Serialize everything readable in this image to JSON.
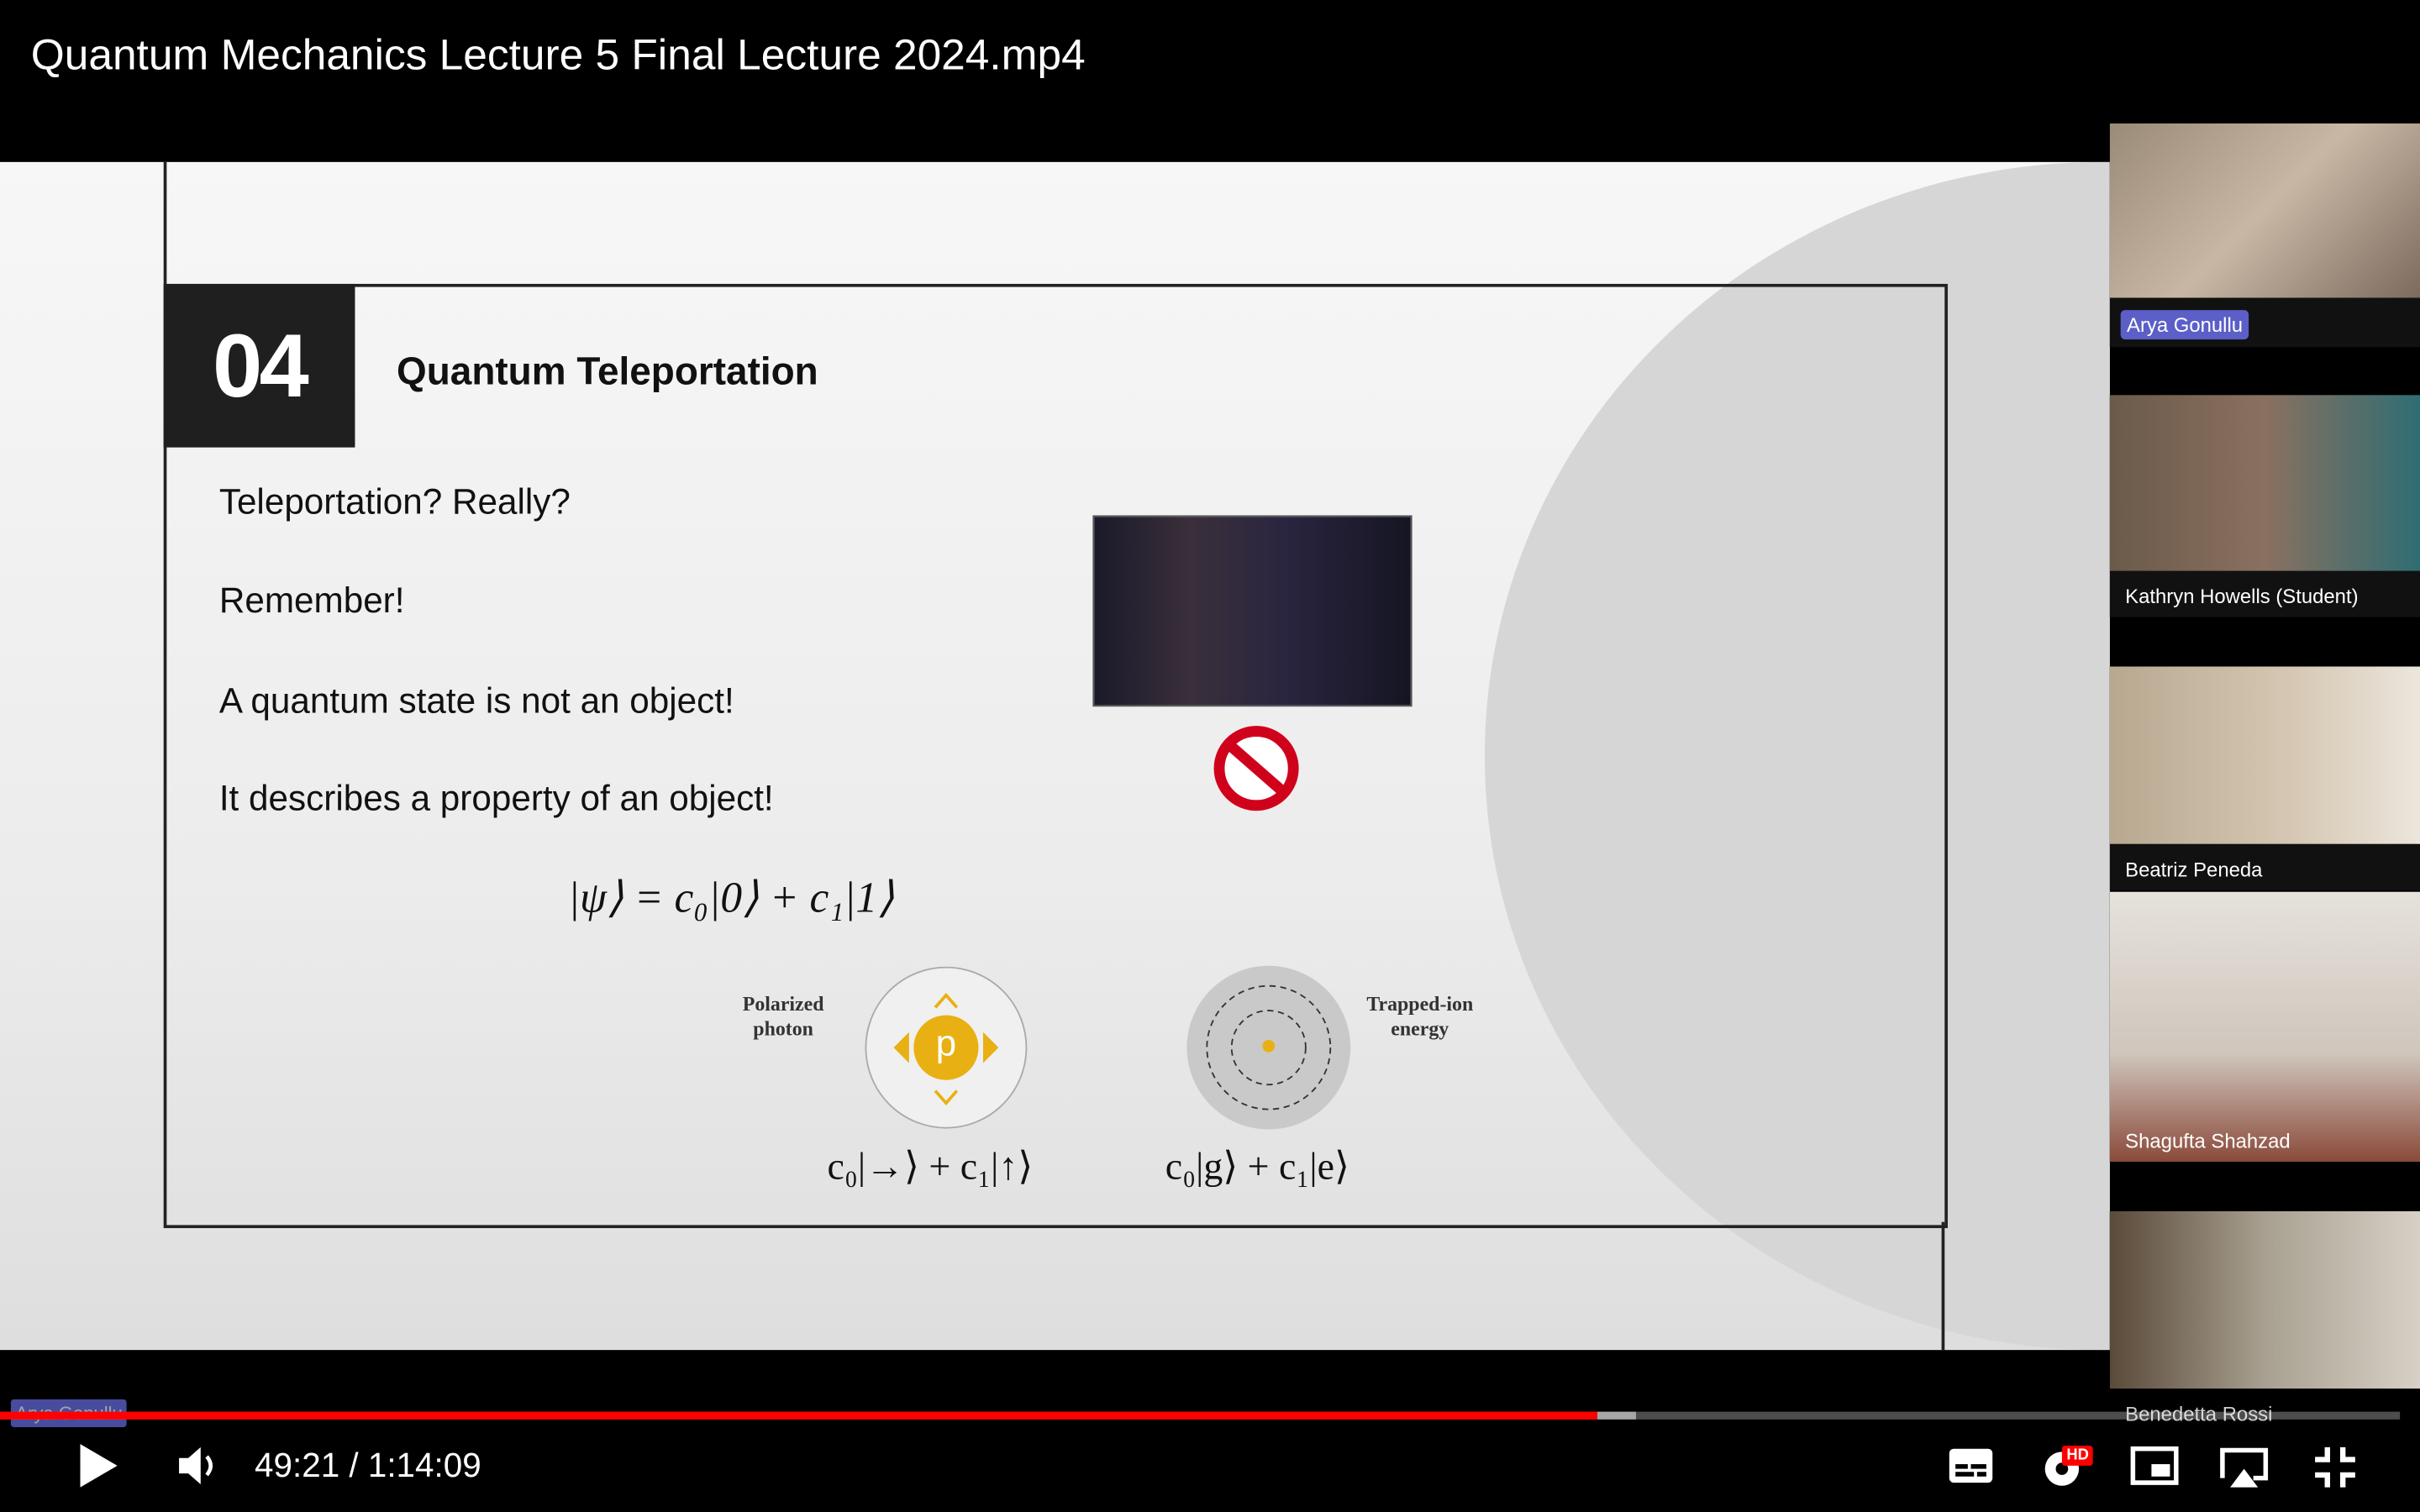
{
  "header": {
    "title": "Quantum Mechanics Lecture 5 Final Lecture 2024.mp4"
  },
  "slide": {
    "number": "04",
    "title": "Quantum Teleportation",
    "lines": [
      "Teleportation? Really?",
      "Remember!",
      "A quantum state is not an object!",
      "It describes a property of an object!"
    ],
    "equation": "|ψ⟩ = c₀|0⟩ + c₁|1⟩",
    "photon": {
      "label_1": "Polarized",
      "label_2": "photon",
      "symbol": "p",
      "equation": "c₀|→⟩ + c₁|↑⟩"
    },
    "ion": {
      "label_1": "Trapped-ion",
      "label_2": "energy",
      "equation": "c₀|g⟩ + c₁|e⟩"
    }
  },
  "participants": [
    "Arya Gonullu",
    "Kathryn Howells (Student)",
    "Beatriz Peneda",
    "Shagufta Shahzad",
    "Benedetta Rossi"
  ],
  "speaker_overlay": "Arya Gonullu",
  "controls": {
    "time": "49:21 / 1:14:09",
    "hd": "HD"
  }
}
